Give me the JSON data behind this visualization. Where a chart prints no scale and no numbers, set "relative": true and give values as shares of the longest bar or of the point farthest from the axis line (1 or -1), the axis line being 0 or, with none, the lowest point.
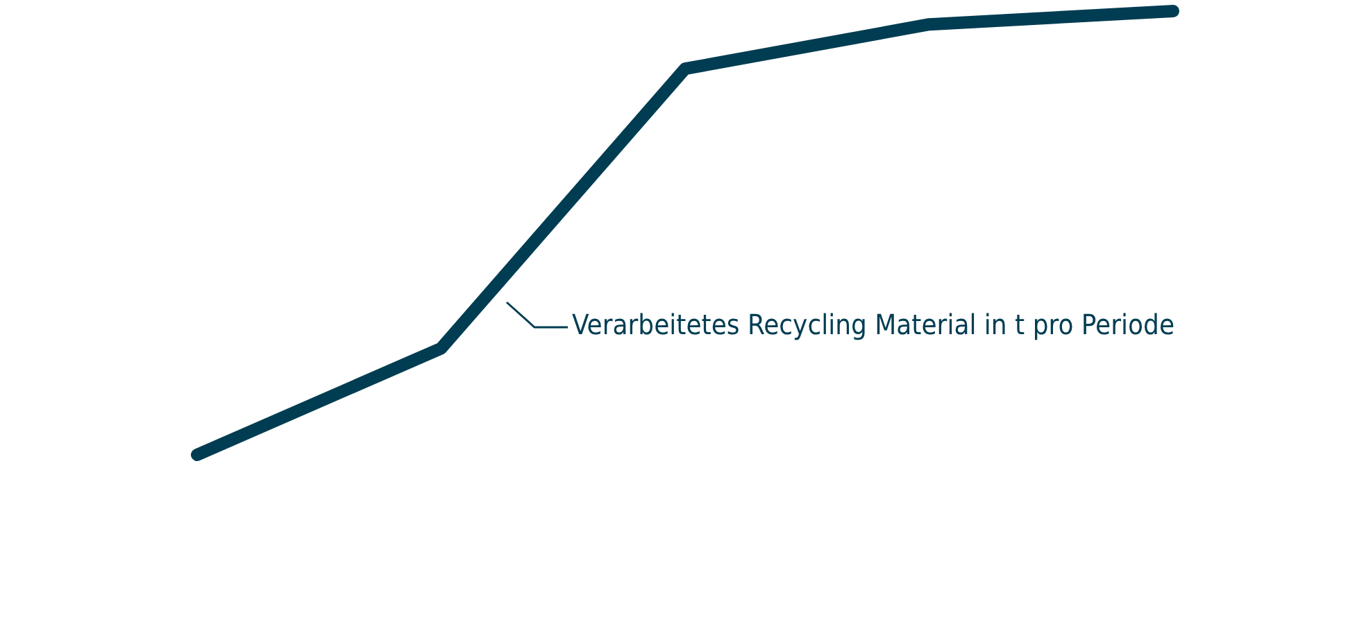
{
  "chart_data": {
    "type": "line",
    "relative": true,
    "categories": [
      null,
      null,
      null,
      null,
      null
    ],
    "series": [
      {
        "name": "Verarbeitetes Recycling Material in t pro Periode",
        "color": "#003d52",
        "values": [
          0,
          0.24,
          0.87,
          0.97,
          1
        ]
      }
    ],
    "grid": false,
    "legend": "right",
    "marker": "none",
    "line_style": "solid"
  }
}
